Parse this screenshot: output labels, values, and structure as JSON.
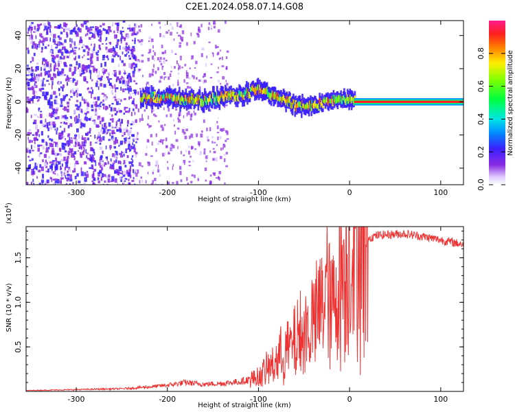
{
  "title": "C2E1.2024.058.07.14.G08",
  "chart_data": [
    {
      "type": "heatmap",
      "xlabel": "Height of straight line (km)",
      "ylabel": "Frequency (Hz)",
      "xlim": [
        -355,
        125
      ],
      "ylim": [
        -50,
        49
      ],
      "xticks": [
        -300,
        -200,
        -100,
        0,
        100
      ],
      "yticks": [
        -40,
        -20,
        0,
        20,
        40
      ],
      "colorbar": {
        "label": "Normalized spectral amplitude",
        "range": [
          0,
          1
        ],
        "ticks": [
          0.0,
          0.2,
          0.4,
          0.6,
          0.8
        ],
        "tick_labels": [
          "0.0",
          "0.2",
          "0.4",
          "0.6",
          "0.8"
        ],
        "colormap": "rainbow (white-violet-blue-cyan-green-yellow-red-magenta)"
      },
      "features": {
        "noise_region_x": [
          -355,
          -235
        ],
        "signal_trace": {
          "x": [
            -230,
            -200,
            -160,
            -140,
            -120,
            -100,
            -80,
            -60,
            -40,
            -20,
            0,
            125
          ],
          "y": [
            3,
            2,
            1,
            3,
            4,
            8,
            3,
            -2,
            -2,
            1,
            2,
            0
          ]
        },
        "steady_carrier_x": [
          5,
          125
        ],
        "steady_carrier_y": 0
      }
    },
    {
      "type": "line",
      "xlabel": "Height of straight line (km)",
      "ylabel": "SNR (10 * v/v)",
      "y_multiplier": "(x10",
      "y_multiplier_exp": "4",
      "y_multiplier_close": ")",
      "xlim": [
        -355,
        125
      ],
      "ylim": [
        0,
        18500
      ],
      "xticks": [
        -300,
        -200,
        -100,
        0,
        100
      ],
      "yticks": [
        5000,
        10000,
        15000
      ],
      "ytick_labels": [
        "0.5",
        "1.0",
        "1.5"
      ],
      "color": "#ee3333",
      "series": [
        {
          "x": [
            -355,
            -300,
            -250,
            -220,
            -200,
            -180,
            -160,
            -140,
            -120,
            -100,
            -90,
            -80,
            -70,
            -60,
            -50,
            -40,
            -30,
            -25,
            -20,
            -10,
            0,
            10,
            20,
            30,
            40,
            60,
            80,
            100,
            125
          ],
          "y": [
            100,
            200,
            300,
            500,
            700,
            1000,
            800,
            900,
            1100,
            1600,
            2500,
            3500,
            4500,
            5500,
            6500,
            7500,
            10000,
            12000,
            9000,
            13000,
            15000,
            16500,
            17200,
            17500,
            17600,
            17700,
            17400,
            17000,
            16500
          ]
        }
      ]
    }
  ]
}
